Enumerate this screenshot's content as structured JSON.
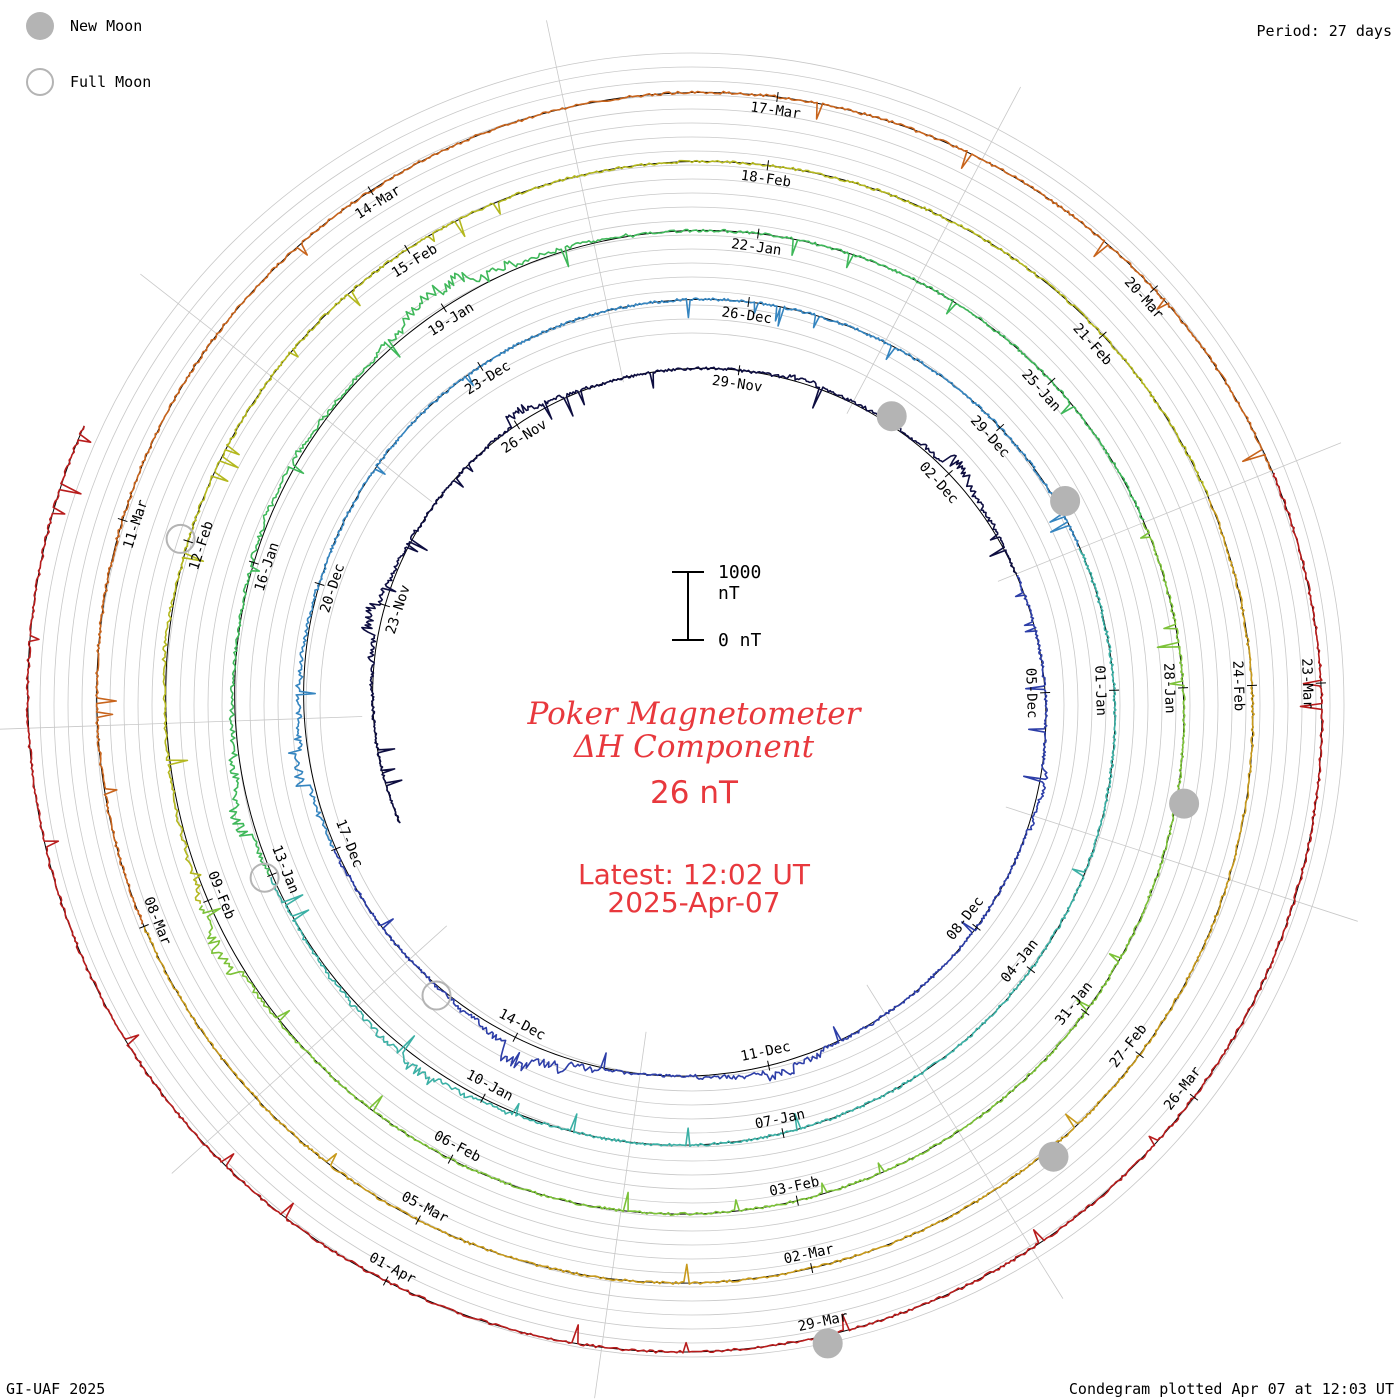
{
  "header": {
    "period": "Period: 27 days",
    "legend": {
      "new_moon": "New Moon",
      "full_moon": "Full Moon"
    }
  },
  "footer": {
    "credit": "GI-UAF 2025",
    "plotted": "Condegram plotted Apr 07 at 12:03 UT"
  },
  "title": {
    "line1": "Poker Magnetometer",
    "line2": "ΔH Component",
    "current_value": "26 nT",
    "latest_label": "Latest: 12:02 UT",
    "latest_date": "2025-Apr-07"
  },
  "scale": {
    "top_label": "1000 nT",
    "bottom_label": "0 nT"
  },
  "colors": {
    "title": "#e8383d",
    "grid": "#c8c8c8",
    "baseline": "#000000",
    "moon": "#b4b4b4",
    "traces": [
      "#0d0d40",
      "#2d3ea8",
      "#3585c0",
      "#3bb0a5",
      "#3fb85a",
      "#7cc238",
      "#b4b81e",
      "#c89a1c",
      "#c8641c",
      "#b81c1c"
    ]
  },
  "chart_data": {
    "type": "line",
    "subtype": "condegram (spiral, 27-day rotation)",
    "period_days": 27,
    "start_date": "2024-11-20",
    "latest": "2025-04-07 12:02 UT",
    "current_value_nT": 26,
    "scale_nT": [
      0,
      1000
    ],
    "date_labels": [
      "23-Nov",
      "26-Nov",
      "29-Nov",
      "02-Dec",
      "05-Dec",
      "08-Dec",
      "11-Dec",
      "14-Dec",
      "17-Dec",
      "20-Dec",
      "23-Dec",
      "26-Dec",
      "29-Dec",
      "01-Jan",
      "04-Jan",
      "07-Jan",
      "10-Jan",
      "13-Jan",
      "16-Jan",
      "19-Jan",
      "22-Jan",
      "25-Jan",
      "28-Jan",
      "31-Jan",
      "03-Feb",
      "06-Feb",
      "09-Feb",
      "12-Feb",
      "15-Feb",
      "18-Feb",
      "21-Feb",
      "24-Feb",
      "27-Feb",
      "02-Mar",
      "05-Mar",
      "08-Mar",
      "11-Mar",
      "14-Mar",
      "17-Mar",
      "20-Mar",
      "23-Mar",
      "26-Mar",
      "29-Mar",
      "01-Apr"
    ],
    "new_moon_dates": [
      "2024-12-01",
      "2024-12-30",
      "2025-01-29",
      "2025-02-28",
      "2025-03-29"
    ],
    "full_moon_dates": [
      "2024-12-15",
      "2025-01-13",
      "2025-02-12"
    ],
    "series": [
      {
        "values": [
          0,
          0,
          0,
          0,
          0,
          20,
          60,
          180,
          90,
          40,
          20,
          0,
          0,
          0,
          0,
          20,
          140,
          60,
          30,
          0,
          0,
          0,
          0,
          0,
          0,
          10,
          60,
          30,
          20,
          30,
          20,
          50,
          180,
          90,
          40,
          20,
          0,
          0,
          0,
          0,
          0,
          0,
          0,
          60,
          40,
          0,
          0,
          0,
          0,
          0,
          0,
          0,
          0,
          10,
          20,
          80,
          160,
          80,
          40,
          0,
          0,
          10,
          60,
          180,
          300,
          120,
          60,
          20,
          0
        ]
      },
      {
        "values": [
          0,
          0,
          0,
          20,
          40,
          60,
          200,
          120,
          80,
          60,
          40,
          20,
          0,
          0,
          0,
          0,
          0,
          0,
          0,
          0,
          0,
          0,
          0,
          0,
          0,
          0,
          0,
          0,
          0,
          0,
          0,
          0,
          0,
          0,
          0,
          0,
          0,
          0,
          0,
          0,
          0,
          0,
          0,
          0,
          0,
          0,
          0,
          0,
          0,
          0,
          0,
          0,
          0,
          0,
          0,
          0,
          0,
          0,
          0,
          0,
          0,
          0,
          0,
          0,
          0,
          0,
          0,
          20,
          40,
          80,
          160,
          100,
          60,
          40,
          20,
          10,
          30,
          60,
          200,
          120,
          60,
          40,
          20,
          10,
          20,
          40,
          60,
          60,
          40,
          30,
          40,
          100,
          240,
          260,
          120,
          60,
          40,
          20,
          0,
          0,
          0,
          0,
          0,
          0,
          0,
          0,
          0,
          0,
          0,
          0,
          0,
          0,
          0,
          0,
          0,
          0,
          0,
          0,
          0,
          0,
          0,
          0,
          0,
          0,
          0,
          0,
          0,
          0,
          0,
          0,
          0,
          0,
          0,
          0,
          0,
          0,
          0,
          0,
          0,
          0,
          0,
          0,
          0,
          0,
          0,
          0,
          20,
          40,
          200,
          120,
          60,
          40,
          30,
          20,
          20,
          40,
          20,
          0,
          0,
          0,
          0,
          0,
          0,
          0,
          0,
          0,
          0,
          0,
          0,
          0,
          0,
          0,
          0,
          0,
          0,
          0,
          0,
          0,
          0,
          0,
          0,
          0,
          0,
          0,
          0,
          0,
          0,
          0,
          0,
          0,
          0,
          0,
          0,
          0,
          0,
          0,
          0,
          0,
          0,
          0,
          0,
          0,
          0,
          0,
          0,
          0,
          0,
          0,
          0,
          0,
          0,
          0,
          0,
          0,
          0,
          0,
          0,
          0,
          0,
          0,
          0,
          0,
          0,
          0,
          0,
          0,
          0,
          0,
          0,
          0,
          0,
          0,
          0,
          0,
          0,
          0,
          0,
          0,
          0,
          0,
          0,
          0,
          0,
          0,
          0,
          0,
          0,
          0,
          0,
          0,
          0,
          0,
          0,
          0,
          0,
          0,
          0,
          0,
          0,
          0,
          0,
          0,
          0,
          0,
          0,
          0,
          0,
          0,
          0,
          0,
          0,
          0,
          0,
          0,
          0,
          0,
          0,
          0,
          0,
          0,
          0,
          0,
          0,
          0,
          0,
          0,
          0,
          0,
          0,
          0,
          0,
          0,
          0,
          0,
          0,
          0,
          0,
          0,
          0,
          0,
          0,
          0,
          0,
          0,
          0,
          0
        ]
      },
      {
        "values": [
          0,
          0,
          0,
          0,
          0,
          0,
          0,
          0,
          0,
          0,
          0,
          0,
          0,
          0,
          0,
          0,
          0,
          0,
          0,
          0,
          0,
          0,
          0,
          0,
          0,
          0,
          0,
          0,
          0,
          0,
          0,
          0,
          0,
          0,
          0,
          0,
          0,
          0,
          0,
          0,
          0,
          0,
          0,
          0,
          0,
          0,
          0,
          0,
          0,
          0,
          0,
          0,
          0,
          0,
          0,
          0,
          0,
          0,
          0,
          0,
          0,
          0,
          0,
          0,
          0,
          0,
          0,
          0,
          0,
          0,
          0,
          0,
          0,
          0,
          0,
          0,
          0,
          0,
          0,
          0,
          0,
          0,
          0,
          0,
          0,
          0,
          0,
          0,
          0,
          0,
          0,
          0,
          0,
          0,
          0,
          0,
          0,
          0,
          0,
          0,
          0,
          0,
          0,
          0,
          0,
          0,
          0,
          0,
          0,
          0,
          0,
          0,
          0,
          0,
          0,
          0,
          0,
          0,
          0,
          0,
          0,
          0,
          0,
          0,
          0,
          0,
          0,
          0,
          0,
          0,
          0,
          0,
          0,
          0,
          0,
          0,
          0,
          0,
          0,
          0,
          0,
          0,
          0,
          0,
          0,
          0,
          0,
          0,
          0,
          0,
          0,
          0,
          0,
          0,
          0,
          0,
          0,
          0,
          0,
          0,
          0,
          0,
          0,
          0,
          0,
          0,
          0,
          0,
          0,
          0,
          0,
          0,
          0,
          0,
          0,
          0,
          0,
          0,
          0,
          0,
          0,
          0,
          0,
          0,
          0,
          0,
          0,
          0,
          0,
          0,
          0,
          0,
          0,
          0,
          0,
          0,
          0,
          0,
          0,
          0,
          0,
          0,
          0,
          0,
          0,
          0,
          0,
          0,
          0,
          0,
          0,
          0,
          0,
          0,
          0,
          0,
          0,
          0,
          0,
          0,
          0,
          0,
          0,
          0,
          0,
          0,
          0,
          0,
          0,
          0,
          0,
          0,
          0,
          0,
          0,
          0,
          0,
          0,
          0,
          0,
          0,
          0,
          0,
          0,
          0,
          0,
          0,
          0,
          0,
          0,
          0,
          0,
          0,
          0,
          0,
          0,
          0,
          0,
          0,
          0,
          0,
          0,
          0,
          0,
          0,
          0,
          0,
          0,
          0,
          0,
          0,
          0,
          0,
          0,
          0,
          0
        ]
      }
    ]
  }
}
